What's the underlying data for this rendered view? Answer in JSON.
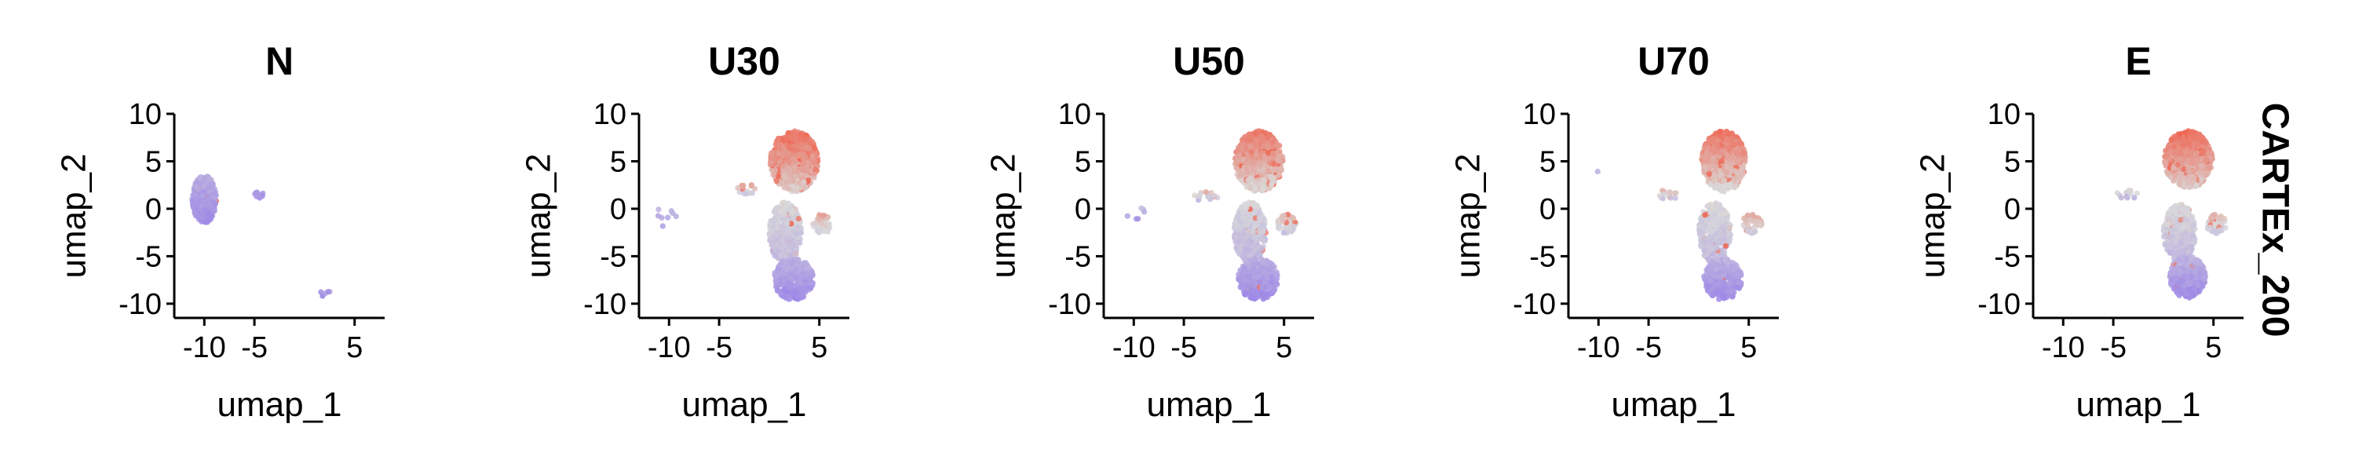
{
  "chart_data": {
    "type": "scatter",
    "feature": "CARTEx_200",
    "panels": [
      {
        "title": "N",
        "clusters": [
          {
            "cx": -10,
            "cy": 1,
            "rx": 1.2,
            "ry": 2.5,
            "n": 420,
            "lowLevel": 0.0,
            "highLevel": 0.22,
            "hot": 0.02
          },
          {
            "cx": -4.6,
            "cy": 1.4,
            "rx": 0.7,
            "ry": 0.35,
            "n": 10,
            "lowLevel": 0.0,
            "highLevel": 0.15,
            "hot": 0
          },
          {
            "cx": 2,
            "cy": -8.8,
            "rx": 0.6,
            "ry": 0.6,
            "n": 6,
            "lowLevel": 0.0,
            "highLevel": 0.15,
            "hot": 0
          }
        ]
      },
      {
        "title": "U30",
        "clusters": [
          {
            "cx": 2.5,
            "cy": 5,
            "rx": 2.4,
            "ry": 3.2,
            "n": 650,
            "lowLevel": 0.55,
            "highLevel": 0.95,
            "hot": 0.15
          },
          {
            "cx": 1.6,
            "cy": -2.5,
            "rx": 1.6,
            "ry": 3.2,
            "n": 330,
            "lowLevel": 0.3,
            "highLevel": 0.5,
            "hot": 0.04
          },
          {
            "cx": 2.4,
            "cy": -7.4,
            "rx": 2.0,
            "ry": 2.2,
            "n": 330,
            "lowLevel": 0.0,
            "highLevel": 0.25,
            "hot": 0.01
          },
          {
            "cx": 5.3,
            "cy": -1.6,
            "rx": 1.0,
            "ry": 1.0,
            "n": 55,
            "lowLevel": 0.4,
            "highLevel": 0.7,
            "hot": 0.05
          },
          {
            "cx": -2.3,
            "cy": 2.0,
            "rx": 0.9,
            "ry": 0.7,
            "n": 14,
            "lowLevel": 0.3,
            "highLevel": 0.8,
            "hot": 0.1
          },
          {
            "cx": -10,
            "cy": -1,
            "rx": 1.5,
            "ry": 1.6,
            "n": 8,
            "lowLevel": 0.0,
            "highLevel": 0.3,
            "hot": 0
          }
        ]
      },
      {
        "title": "U50",
        "clusters": [
          {
            "cx": 2.5,
            "cy": 5,
            "rx": 2.4,
            "ry": 3.2,
            "n": 620,
            "lowLevel": 0.5,
            "highLevel": 0.9,
            "hot": 0.12
          },
          {
            "cx": 1.6,
            "cy": -2.5,
            "rx": 1.6,
            "ry": 3.2,
            "n": 340,
            "lowLevel": 0.28,
            "highLevel": 0.48,
            "hot": 0.03
          },
          {
            "cx": 2.4,
            "cy": -7.4,
            "rx": 2.0,
            "ry": 2.2,
            "n": 360,
            "lowLevel": 0.0,
            "highLevel": 0.22,
            "hot": 0.01
          },
          {
            "cx": 5.3,
            "cy": -1.6,
            "rx": 1.0,
            "ry": 1.0,
            "n": 50,
            "lowLevel": 0.35,
            "highLevel": 0.65,
            "hot": 0.05
          },
          {
            "cx": -2.8,
            "cy": 1.3,
            "rx": 1.2,
            "ry": 0.5,
            "n": 16,
            "lowLevel": 0.2,
            "highLevel": 0.7,
            "hot": 0.05
          },
          {
            "cx": -9.5,
            "cy": -0.5,
            "rx": 1.3,
            "ry": 0.7,
            "n": 6,
            "lowLevel": 0.0,
            "highLevel": 0.3,
            "hot": 0
          }
        ]
      },
      {
        "title": "U70",
        "clusters": [
          {
            "cx": 2.5,
            "cy": 5,
            "rx": 2.2,
            "ry": 3.2,
            "n": 560,
            "lowLevel": 0.5,
            "highLevel": 0.92,
            "hot": 0.12
          },
          {
            "cx": 1.6,
            "cy": -2.5,
            "rx": 1.6,
            "ry": 3.2,
            "n": 320,
            "lowLevel": 0.3,
            "highLevel": 0.5,
            "hot": 0.03
          },
          {
            "cx": 2.4,
            "cy": -7.4,
            "rx": 1.9,
            "ry": 2.2,
            "n": 300,
            "lowLevel": 0.0,
            "highLevel": 0.25,
            "hot": 0.01
          },
          {
            "cx": 5.3,
            "cy": -1.6,
            "rx": 1.0,
            "ry": 1.0,
            "n": 55,
            "lowLevel": 0.4,
            "highLevel": 0.7,
            "hot": 0.05
          },
          {
            "cx": -3.0,
            "cy": 1.5,
            "rx": 1.1,
            "ry": 0.5,
            "n": 14,
            "lowLevel": 0.3,
            "highLevel": 0.7,
            "hot": 0.05
          },
          {
            "cx": -10,
            "cy": 4,
            "rx": 0.2,
            "ry": 0.2,
            "n": 1,
            "lowLevel": 0.2,
            "highLevel": 0.3,
            "hot": 0
          }
        ]
      },
      {
        "title": "E",
        "clusters": [
          {
            "cx": 2.5,
            "cy": 5.2,
            "rx": 2.4,
            "ry": 3.0,
            "n": 680,
            "lowLevel": 0.55,
            "highLevel": 0.95,
            "hot": 0.1
          },
          {
            "cx": 1.6,
            "cy": -2.5,
            "rx": 1.6,
            "ry": 3.0,
            "n": 340,
            "lowLevel": 0.3,
            "highLevel": 0.5,
            "hot": 0.03
          },
          {
            "cx": 2.4,
            "cy": -7.2,
            "rx": 1.8,
            "ry": 2.2,
            "n": 320,
            "lowLevel": 0.0,
            "highLevel": 0.25,
            "hot": 0.01
          },
          {
            "cx": 5.3,
            "cy": -1.6,
            "rx": 1.0,
            "ry": 1.0,
            "n": 55,
            "lowLevel": 0.35,
            "highLevel": 0.65,
            "hot": 0.05
          },
          {
            "cx": -3.5,
            "cy": 1.5,
            "rx": 1.2,
            "ry": 0.5,
            "n": 14,
            "lowLevel": 0.2,
            "highLevel": 0.6,
            "hot": 0.05
          }
        ]
      }
    ],
    "xlabel": "umap_1",
    "ylabel": "umap_2",
    "xticks": [
      -10,
      -5,
      5
    ],
    "xtickLabels": [
      "-10",
      "-5",
      "5"
    ],
    "yticks": [
      10,
      5,
      0,
      -5,
      -10
    ],
    "ytickLabels": [
      "10",
      "5",
      "0",
      "-5",
      "-10"
    ],
    "xlim": [
      -13,
      8
    ],
    "ylim": [
      -11.5,
      10
    ],
    "grid": false,
    "legend": "none",
    "rowStrip": "CARTEx_200",
    "colors": {
      "low": "#9f8ae6",
      "mid": "#d9d9d9",
      "high": "#f0614d",
      "axis": "#000000"
    }
  }
}
